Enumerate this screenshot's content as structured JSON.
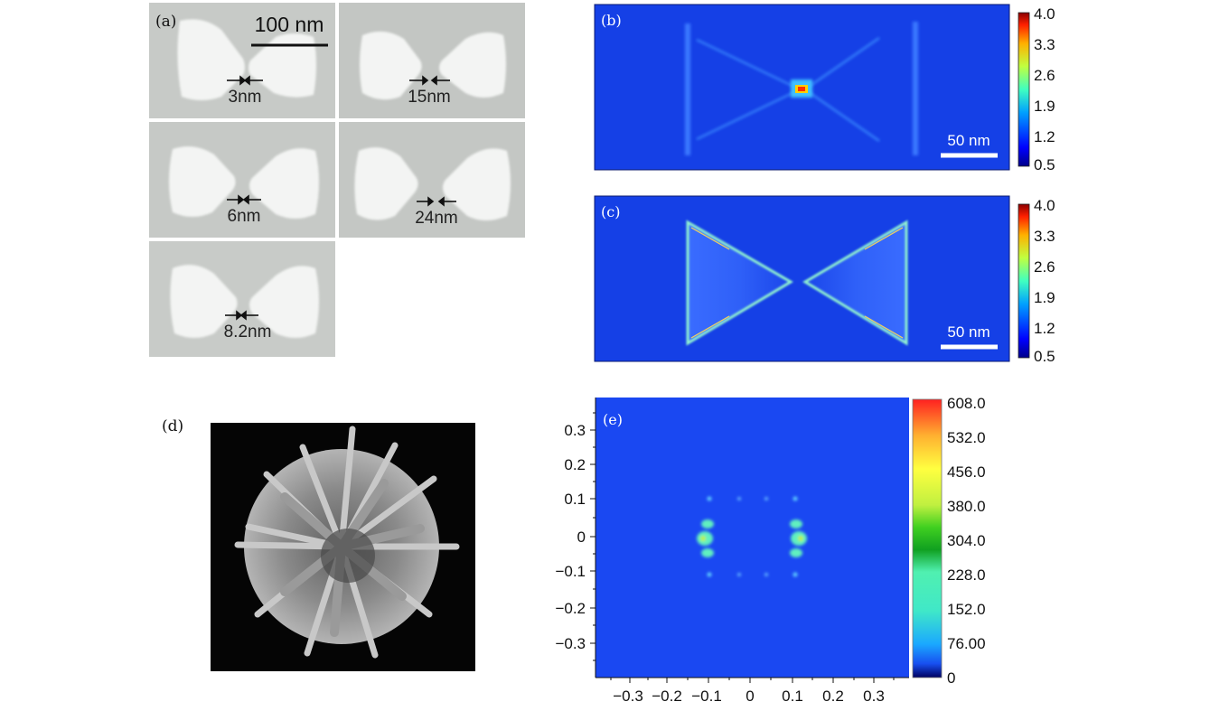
{
  "panel_a": {
    "label": "(a)",
    "scale_bar_label": "100 nm",
    "gaps": [
      "3nm",
      "15nm",
      "6nm",
      "24nm",
      "8.2nm"
    ]
  },
  "panel_b": {
    "label": "(b)",
    "scale_bar_label": "50 nm",
    "colorbar_ticks": [
      "4.0",
      "3.3",
      "2.6",
      "1.9",
      "1.2",
      "0.5"
    ]
  },
  "panel_c": {
    "label": "(c)",
    "scale_bar_label": "50 nm",
    "colorbar_ticks": [
      "4.0",
      "3.3",
      "2.6",
      "1.9",
      "1.2",
      "0.5"
    ]
  },
  "panel_d": {
    "label": "(d)"
  },
  "panel_e": {
    "label": "(e)",
    "y_ticks": [
      "0.3",
      "0.2",
      "0.1",
      "0",
      "−0.1",
      "−0.2",
      "−0.3"
    ],
    "x_ticks": [
      "−0.3",
      "−0.2",
      "−0.1",
      "0",
      "0.1",
      "0.2",
      "0.3"
    ],
    "colorbar_ticks": [
      "608.0",
      "532.0",
      "456.0",
      "380.0",
      "304.0",
      "228.0",
      "152.0",
      "76.00",
      "0"
    ]
  },
  "colors": {
    "field_background": "#1540e6",
    "sem_background": "#c9ccc9",
    "particle": "#f2f3f2"
  }
}
